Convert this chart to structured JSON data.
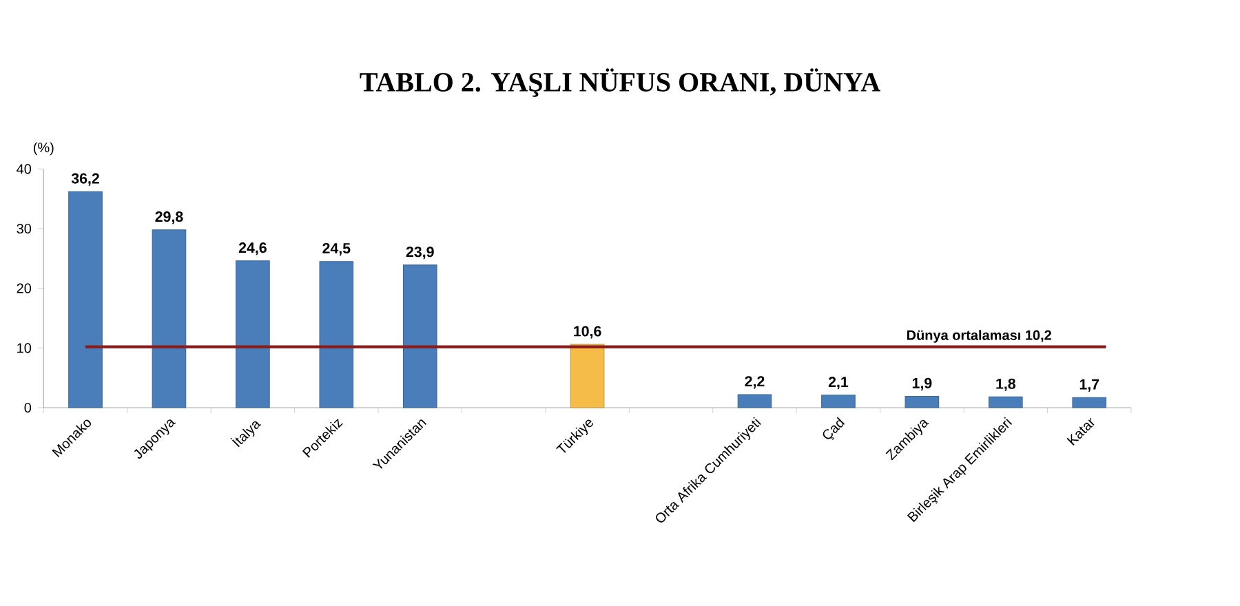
{
  "chart_data": {
    "type": "bar",
    "title": "TABLO 2. YAŞLI NÜFUS ORANI, DÜNYA",
    "ylabel": "(%)",
    "categories": [
      "Monako",
      "Japonya",
      "İtalya",
      "Portekiz",
      "Yunanistan",
      null,
      "Türkiye",
      null,
      "Orta Afrika Cumhuriyeti",
      "Çad",
      "Zambiya",
      "Birleşik Arap Emirlikleri",
      "Katar"
    ],
    "values": [
      36.2,
      29.8,
      24.6,
      24.5,
      23.9,
      null,
      10.6,
      null,
      2.2,
      2.1,
      1.9,
      1.8,
      1.7
    ],
    "value_labels": [
      "36,2",
      "29,8",
      "24,6",
      "24,5",
      "23,9",
      null,
      "10,6",
      null,
      "2,2",
      "2,1",
      "1,9",
      "1,8",
      "1,7"
    ],
    "colors": [
      "#4a7ebb",
      "#4a7ebb",
      "#4a7ebb",
      "#4a7ebb",
      "#4a7ebb",
      null,
      "#f5bd48",
      null,
      "#4a7ebb",
      "#4a7ebb",
      "#4a7ebb",
      "#4a7ebb",
      "#4a7ebb"
    ],
    "ylim": [
      0,
      40
    ],
    "yticks": [
      0,
      10,
      20,
      30,
      40
    ],
    "ref_lines": [
      {
        "axis": "y",
        "value": 10.2,
        "label": "Dünya ortalaması  10,2",
        "color": "#8b1a1a"
      }
    ]
  }
}
